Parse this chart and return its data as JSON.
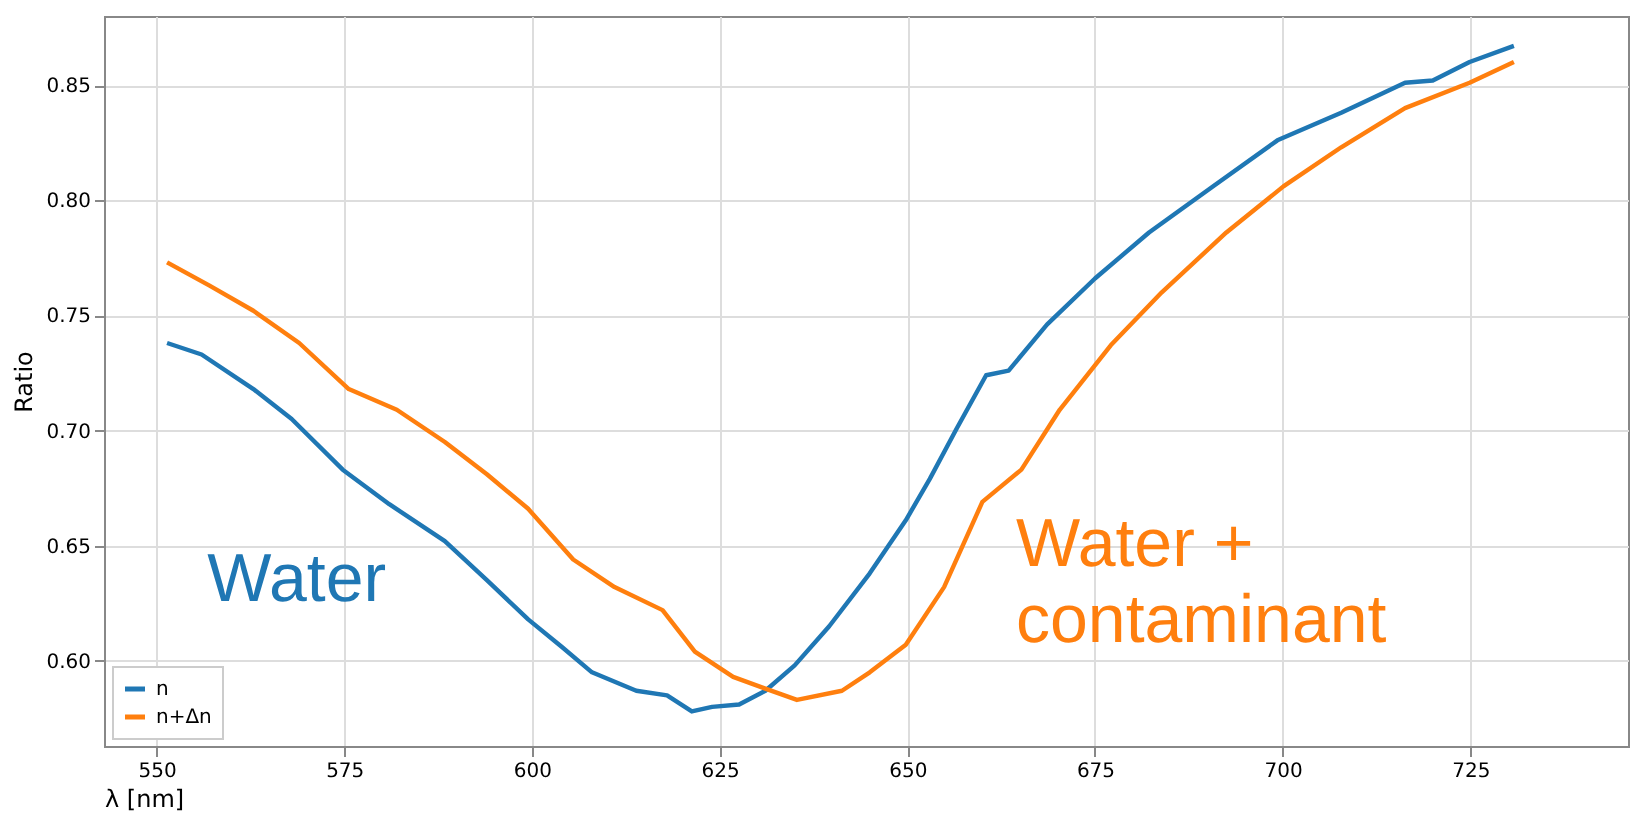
{
  "chart_data": {
    "type": "line",
    "xlabel": "λ [nm]",
    "ylabel": "Ratio",
    "xlim": [
      543,
      746
    ],
    "ylim": [
      0.563,
      0.88
    ],
    "xticks": [
      550,
      575,
      600,
      625,
      650,
      675,
      700,
      725
    ],
    "yticks": [
      {
        "value": 0.6,
        "label": "0.60"
      },
      0.65,
      {
        "value": 0.7,
        "label": "0.70"
      },
      0.75,
      {
        "value": 0.8,
        "label": "0.80"
      },
      0.85
    ],
    "grid": true,
    "legend": "bottom left",
    "marker": "none",
    "line_style": "solid",
    "annotations": [
      "Water",
      "Water +\ncontaminant"
    ],
    "series": [
      {
        "name": "n",
        "color": "#1f77b4",
        "x": [
          551.4,
          556,
          562.9,
          568,
          574.8,
          581,
          588.4,
          594,
          599.5,
          604,
          608,
          613.9,
          618,
          621.3,
          624,
          627.6,
          631.1,
          635,
          639.6,
          645,
          649.8,
          653,
          656.6,
          660.5,
          663.5,
          668.6,
          675,
          682.2,
          690.7,
          699.3,
          707.8,
          716.3,
          720,
          724.9,
          730.8
        ],
        "values": [
          0.738,
          0.733,
          0.718,
          0.705,
          0.683,
          0.668,
          0.652,
          0.635,
          0.618,
          0.606,
          0.595,
          0.587,
          0.585,
          0.578,
          0.58,
          0.581,
          0.587,
          0.598,
          0.615,
          0.638,
          0.661,
          0.679,
          0.701,
          0.724,
          0.726,
          0.746,
          0.766,
          0.786,
          0.806,
          0.826,
          0.838,
          0.851,
          0.852,
          0.86,
          0.867
        ]
      },
      {
        "name": "n+Δn",
        "color": "#ff7f0e",
        "x": [
          551.4,
          557,
          562.9,
          569,
          575.6,
          582,
          588.4,
          594,
          599.5,
          605.5,
          611,
          617.4,
          621.7,
          626.8,
          631,
          635.3,
          641.3,
          645,
          649.8,
          654.9,
          660,
          665.2,
          670.3,
          677.1,
          683.9,
          692.5,
          700.1,
          707.8,
          716.3,
          724.9,
          730.8
        ],
        "values": [
          0.773,
          0.763,
          0.752,
          0.738,
          0.718,
          0.709,
          0.695,
          0.681,
          0.666,
          0.644,
          0.632,
          0.622,
          0.604,
          0.593,
          0.588,
          0.583,
          0.587,
          0.595,
          0.607,
          0.632,
          0.669,
          0.683,
          0.709,
          0.737,
          0.76,
          0.786,
          0.806,
          0.823,
          0.84,
          0.851,
          0.86
        ]
      }
    ]
  }
}
